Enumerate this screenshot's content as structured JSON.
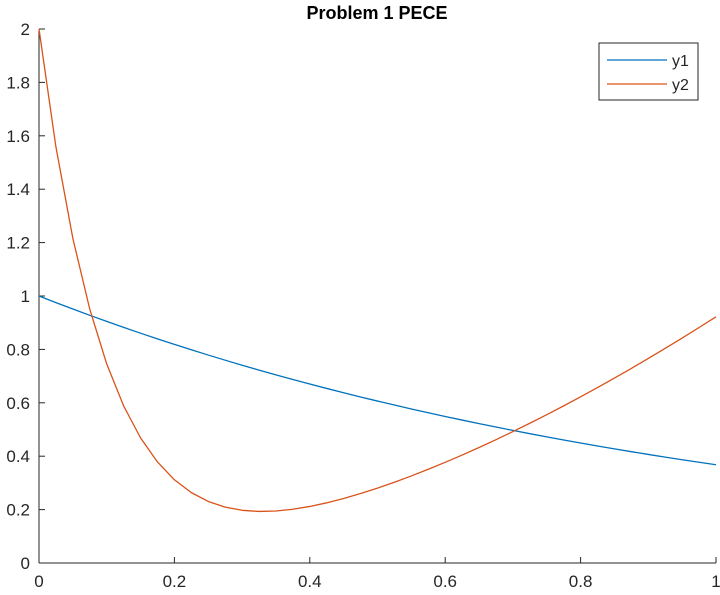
{
  "chart_data": {
    "type": "line",
    "title": "Problem 1 PECE",
    "xlabel": "",
    "ylabel": "",
    "xlim": [
      0,
      1
    ],
    "ylim": [
      0,
      2
    ],
    "xticks": [
      "0",
      "0.2",
      "0.4",
      "0.6",
      "0.8",
      "1"
    ],
    "yticks": [
      "0",
      "0.2",
      "0.4",
      "0.6",
      "0.8",
      "1",
      "1.2",
      "1.4",
      "1.6",
      "1.8",
      "2"
    ],
    "grid": false,
    "legend_position": "top-right",
    "x": [
      0,
      0.025,
      0.05,
      0.075,
      0.1,
      0.125,
      0.15,
      0.175,
      0.2,
      0.225,
      0.25,
      0.275,
      0.3,
      0.325,
      0.35,
      0.375,
      0.4,
      0.425,
      0.45,
      0.475,
      0.5,
      0.525,
      0.55,
      0.575,
      0.6,
      0.625,
      0.65,
      0.675,
      0.7,
      0.725,
      0.75,
      0.775,
      0.8,
      0.825,
      0.85,
      0.875,
      0.9,
      0.925,
      0.95,
      0.975,
      1
    ],
    "series": [
      {
        "name": "y1",
        "color": "#0072BD",
        "values": [
          1,
          0.9753,
          0.9512,
          0.9277,
          0.9048,
          0.8825,
          0.8607,
          0.8395,
          0.8187,
          0.7985,
          0.7788,
          0.7596,
          0.7408,
          0.7225,
          0.7047,
          0.6873,
          0.6703,
          0.6538,
          0.6376,
          0.6219,
          0.6065,
          0.5916,
          0.5769,
          0.5627,
          0.5488,
          0.5353,
          0.522,
          0.5092,
          0.4966,
          0.4843,
          0.4724,
          0.4607,
          0.4493,
          0.4382,
          0.4274,
          0.4169,
          0.4066,
          0.3965,
          0.3867,
          0.3772,
          0.3679
        ]
      },
      {
        "name": "y2",
        "color": "#D95319",
        "values": [
          2,
          1.5583,
          1.2157,
          0.9504,
          0.7457,
          0.5884,
          0.4686,
          0.3784,
          0.3117,
          0.2636,
          0.2305,
          0.2092,
          0.1974,
          0.1931,
          0.1948,
          0.2014,
          0.2118,
          0.2254,
          0.2417,
          0.2602,
          0.2806,
          0.3026,
          0.3261,
          0.351,
          0.3771,
          0.4043,
          0.4326,
          0.4619,
          0.4922,
          0.5234,
          0.5555,
          0.5885,
          0.6224,
          0.6571,
          0.6926,
          0.7289,
          0.766,
          0.8039,
          0.8426,
          0.882,
          0.9222
        ]
      }
    ]
  }
}
